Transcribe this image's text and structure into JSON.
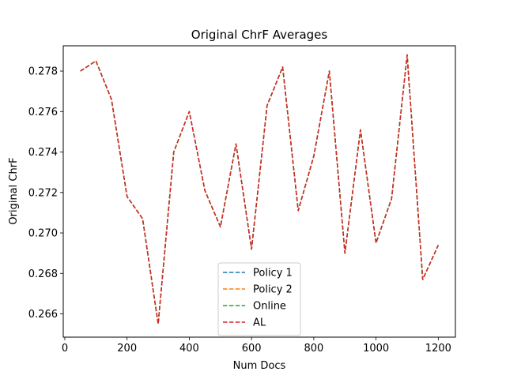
{
  "chart_data": {
    "type": "line",
    "title": "Original ChrF Averages",
    "xlabel": "Num Docs",
    "ylabel": "Original ChrF",
    "xlim": [
      -5,
      1255
    ],
    "ylim": [
      0.26485,
      0.27925
    ],
    "xticks": [
      0,
      200,
      400,
      600,
      800,
      1000,
      1200
    ],
    "xtick_labels": [
      "0",
      "200",
      "400",
      "600",
      "800",
      "1000",
      "1200"
    ],
    "yticks": [
      0.266,
      0.268,
      0.27,
      0.272,
      0.274,
      0.276,
      0.278
    ],
    "ytick_labels": [
      "0.266",
      "0.268",
      "0.270",
      "0.272",
      "0.274",
      "0.276",
      "0.278"
    ],
    "grid": false,
    "legend_position": "lower center",
    "line_style": "dashed",
    "x": [
      50,
      100,
      150,
      200,
      250,
      300,
      350,
      400,
      450,
      500,
      550,
      600,
      650,
      700,
      750,
      800,
      850,
      900,
      950,
      1000,
      1050,
      1100,
      1150,
      1200
    ],
    "series": [
      {
        "name": "Policy 1",
        "color": "#1f77b4",
        "values": [
          0.278,
          0.2785,
          0.2766,
          0.2718,
          0.2707,
          0.2655,
          0.274,
          0.276,
          0.2721,
          0.2703,
          0.2744,
          0.2692,
          0.2763,
          0.2782,
          0.2711,
          0.2738,
          0.278,
          0.269,
          0.2751,
          0.2695,
          0.2717,
          0.2788,
          0.2677,
          0.2694
        ]
      },
      {
        "name": "Policy 2",
        "color": "#ff7f0e",
        "values": [
          0.278,
          0.2785,
          0.2766,
          0.2718,
          0.2707,
          0.2655,
          0.274,
          0.276,
          0.2721,
          0.2703,
          0.2744,
          0.2692,
          0.2763,
          0.2782,
          0.2711,
          0.2738,
          0.278,
          0.269,
          0.2751,
          0.2695,
          0.2717,
          0.2788,
          0.2677,
          0.2694
        ]
      },
      {
        "name": "Online",
        "color": "#2ca02c",
        "values": [
          0.278,
          0.2785,
          0.2766,
          0.2718,
          0.2707,
          0.2655,
          0.274,
          0.276,
          0.2721,
          0.2703,
          0.2744,
          0.2692,
          0.2763,
          0.2782,
          0.2711,
          0.2738,
          0.278,
          0.269,
          0.2751,
          0.2695,
          0.2717,
          0.2788,
          0.2677,
          0.2694
        ]
      },
      {
        "name": "AL",
        "color": "#d62728",
        "values": [
          0.278,
          0.2785,
          0.2766,
          0.2718,
          0.2707,
          0.2655,
          0.274,
          0.276,
          0.2721,
          0.2703,
          0.2744,
          0.2692,
          0.2763,
          0.2782,
          0.2711,
          0.2738,
          0.278,
          0.269,
          0.2751,
          0.2695,
          0.2717,
          0.2788,
          0.2677,
          0.2694
        ]
      }
    ]
  }
}
